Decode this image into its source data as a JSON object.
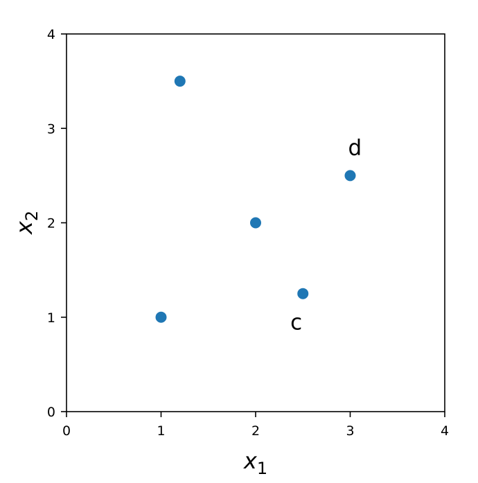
{
  "chart_data": {
    "type": "scatter",
    "title": "",
    "xlabel": {
      "var": "x",
      "sub": "1"
    },
    "ylabel": {
      "var": "x",
      "sub": "2"
    },
    "xlim": [
      0,
      4
    ],
    "ylim": [
      0,
      4
    ],
    "xticks": [
      "0",
      "1",
      "2",
      "3",
      "4"
    ],
    "yticks": [
      "0",
      "1",
      "2",
      "3",
      "4"
    ],
    "grid": false,
    "marker_color": "#1f77b4",
    "series": [
      {
        "points": [
          {
            "x": 1.2,
            "y": 3.5
          },
          {
            "x": 2.0,
            "y": 2.0
          },
          {
            "x": 3.0,
            "y": 2.5
          },
          {
            "x": 2.5,
            "y": 1.25
          },
          {
            "x": 1.0,
            "y": 1.0
          }
        ]
      }
    ],
    "annotations": [
      {
        "text": "d",
        "x": 3.05,
        "y": 2.8
      },
      {
        "text": "c",
        "x": 2.43,
        "y": 0.95
      }
    ]
  }
}
